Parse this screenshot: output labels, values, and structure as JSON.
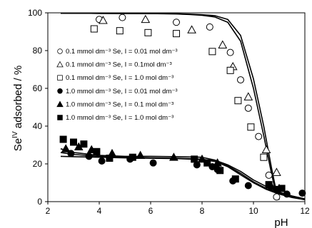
{
  "chart_data": {
    "type": "scatter",
    "title": "",
    "xlabel": "pH",
    "ylabel": "Se(IV) adsorbed / %",
    "ylabel_parts": {
      "prefix": "Se",
      "superscript": "IV",
      "suffix": " adsorbed / %"
    },
    "xlim": [
      2,
      12
    ],
    "ylim": [
      0,
      100
    ],
    "x_ticks": [
      2,
      4,
      6,
      8,
      10,
      12
    ],
    "y_ticks": [
      0,
      20,
      40,
      60,
      80,
      100
    ],
    "grid": false,
    "legend_placement": "middle-left",
    "series": [
      {
        "name": "0.1 mmol dm⁻³ Se, I = 0.01 mol dm⁻³",
        "marker": "circle-open",
        "x": [
          4.0,
          4.9,
          7.0,
          8.3,
          9.1,
          9.5,
          9.8,
          10.2,
          10.6,
          10.9
        ],
        "y": [
          96.5,
          97.5,
          95.0,
          92.5,
          79.0,
          64.5,
          49.5,
          34.5,
          14.0,
          2.5
        ]
      },
      {
        "name": "0.1 mmol dm⁻³ Se, I = 0.1mol dm⁻³",
        "marker": "triangle-open",
        "x": [
          4.15,
          5.8,
          7.6,
          8.8,
          9.2,
          9.8,
          10.5,
          10.9
        ],
        "y": [
          96.0,
          96.5,
          91.0,
          83.0,
          71.5,
          55.5,
          27.5,
          15.5
        ]
      },
      {
        "name": "0.1 mmol dm⁻³ Se, I = 1.0 mol dm⁻³",
        "marker": "square-open",
        "x": [
          3.8,
          4.8,
          5.9,
          7.0,
          8.4,
          9.1,
          9.4,
          9.9,
          10.4
        ],
        "y": [
          91.5,
          90.5,
          89.5,
          89.0,
          79.5,
          69.5,
          53.5,
          39.5,
          23.5
        ]
      },
      {
        "name": "1.0 mmol dm⁻³ Se, I = 0.01 mol dm⁻³",
        "marker": "circle-filled",
        "x": [
          2.9,
          3.6,
          4.1,
          5.2,
          6.1,
          7.8,
          8.4,
          8.6,
          9.2,
          9.8,
          10.9,
          11.3,
          11.9
        ],
        "y": [
          25.5,
          24.0,
          21.5,
          22.5,
          20.5,
          19.5,
          18.5,
          17.0,
          11.0,
          8.5,
          6.5,
          4.0,
          4.5
        ]
      },
      {
        "name": "1.0 mmol dm⁻³ Se, I = 0.1 mol dm⁻³",
        "marker": "triangle-filled",
        "x": [
          2.7,
          3.2,
          3.7,
          4.5,
          5.6,
          6.9,
          8.0,
          8.6,
          10.7,
          11.0
        ],
        "y": [
          28.0,
          29.0,
          27.5,
          25.5,
          24.5,
          23.5,
          22.5,
          20.5,
          8.0,
          7.0
        ]
      },
      {
        "name": "1.0  mmol dm⁻³ Se, I = 1.0 mol dm⁻³",
        "marker": "square-filled",
        "x": [
          2.6,
          3.0,
          3.4,
          3.9,
          4.4,
          5.3,
          7.7,
          8.2,
          8.7,
          9.3,
          10.6,
          11.1
        ],
        "y": [
          33.0,
          31.5,
          30.5,
          26.5,
          23.0,
          23.5,
          22.5,
          20.5,
          16.5,
          12.0,
          9.0,
          7.0
        ]
      }
    ],
    "fitted_curves": [
      {
        "x": [
          2.5,
          4,
          6,
          7,
          7.5,
          8,
          8.5,
          9,
          9.5,
          10,
          10.4,
          10.7,
          10.85,
          11.0
        ],
        "y": [
          99.8,
          99.7,
          99.6,
          99.5,
          99.3,
          99.0,
          98.5,
          96.5,
          88.0,
          65.0,
          40.0,
          18.0,
          8.0,
          1.0
        ]
      },
      {
        "x": [
          2.5,
          4,
          6,
          7,
          7.5,
          8,
          8.5,
          9,
          9.5,
          10,
          10.4,
          10.7,
          10.85,
          11.0
        ],
        "y": [
          99.8,
          99.7,
          99.6,
          99.4,
          99.1,
          98.7,
          97.8,
          95.0,
          85.0,
          60.0,
          35.0,
          15.0,
          6.0,
          1.0
        ]
      },
      {
        "x": [
          2.5,
          3,
          4,
          5,
          6,
          7,
          8,
          8.5,
          9,
          9.5,
          10,
          10.5,
          11,
          11.5,
          12
        ],
        "y": [
          28.0,
          26.0,
          24.5,
          24.0,
          24.0,
          23.8,
          23.5,
          22.0,
          19.5,
          16.0,
          11.5,
          8.0,
          5.0,
          3.0,
          1.5
        ]
      },
      {
        "x": [
          2.5,
          3,
          4,
          5,
          6,
          7,
          8,
          8.5,
          9,
          9.5,
          10,
          10.5,
          11,
          11.5,
          12
        ],
        "y": [
          26.0,
          25.0,
          24.0,
          23.5,
          23.2,
          23.0,
          22.5,
          21.5,
          19.0,
          15.0,
          10.5,
          7.0,
          4.5,
          2.5,
          1.2
        ]
      },
      {
        "x": [
          2.5,
          3,
          4,
          5,
          6,
          7,
          8,
          8.5,
          9,
          9.5,
          10,
          10.5,
          11,
          11.5,
          12
        ],
        "y": [
          24.0,
          23.8,
          23.5,
          23.2,
          23.0,
          22.8,
          22.3,
          21.3,
          18.5,
          14.2,
          10.0,
          6.5,
          4.0,
          2.2,
          1.0
        ]
      }
    ]
  }
}
